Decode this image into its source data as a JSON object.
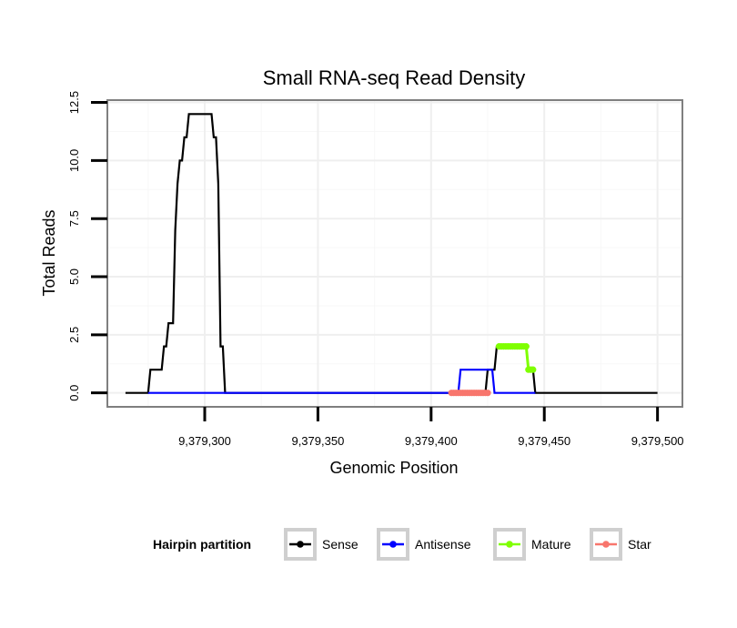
{
  "chart_data": {
    "type": "line",
    "title": "Small RNA-seq Read Density",
    "xlabel": "Genomic Position",
    "ylabel": "Total Reads",
    "xlim": [
      9379257,
      9379511
    ],
    "ylim": [
      -0.6,
      12.6
    ],
    "x_ticks": [
      9379300,
      9379350,
      9379400,
      9379450,
      9379500
    ],
    "x_tick_labels": [
      "9,379,300",
      "9,379,350",
      "9,379,400",
      "9,379,450",
      "9,379,500"
    ],
    "y_ticks": [
      0,
      2.5,
      5,
      7.5,
      10,
      12.5
    ],
    "y_tick_labels": [
      "0.0",
      "2.5",
      "5.0",
      "7.5",
      "10.0",
      "12.5"
    ],
    "grid": true,
    "legend_position": "bottom",
    "legend_title": "Hairpin partition",
    "series": [
      {
        "name": "Sense",
        "color": "#000000",
        "style": "line",
        "points": [
          [
            9379265,
            0
          ],
          [
            9379275,
            0
          ],
          [
            9379276,
            1
          ],
          [
            9379281,
            1
          ],
          [
            9379282,
            2
          ],
          [
            9379283,
            2
          ],
          [
            9379284,
            3
          ],
          [
            9379286,
            3
          ],
          [
            9379287,
            7
          ],
          [
            9379288,
            9
          ],
          [
            9379289,
            10
          ],
          [
            9379290,
            10
          ],
          [
            9379291,
            11
          ],
          [
            9379292,
            11
          ],
          [
            9379293,
            12
          ],
          [
            9379303,
            12
          ],
          [
            9379304,
            11
          ],
          [
            9379305,
            11
          ],
          [
            9379306,
            9
          ],
          [
            9379307,
            2
          ],
          [
            9379308,
            2
          ],
          [
            9379309,
            0
          ],
          [
            9379424,
            0
          ],
          [
            9379425,
            1
          ],
          [
            9379428,
            1
          ],
          [
            9379429,
            2
          ],
          [
            9379442,
            2
          ],
          [
            9379443,
            1
          ],
          [
            9379445,
            1
          ],
          [
            9379446,
            0
          ],
          [
            9379500,
            0
          ]
        ]
      },
      {
        "name": "Antisense",
        "color": "#0000ff",
        "style": "line",
        "points": [
          [
            9379275,
            0
          ],
          [
            9379309,
            0
          ],
          [
            9379410,
            0
          ],
          [
            9379412,
            0
          ],
          [
            9379413,
            1
          ],
          [
            9379427,
            1
          ],
          [
            9379428,
            0
          ],
          [
            9379446,
            0
          ]
        ]
      },
      {
        "name": "Mature",
        "color": "#7fff00",
        "style": "dots",
        "points": [
          [
            9379430,
            2
          ],
          [
            9379431,
            2
          ],
          [
            9379432,
            2
          ],
          [
            9379433,
            2
          ],
          [
            9379434,
            2
          ],
          [
            9379435,
            2
          ],
          [
            9379436,
            2
          ],
          [
            9379437,
            2
          ],
          [
            9379438,
            2
          ],
          [
            9379439,
            2
          ],
          [
            9379440,
            2
          ],
          [
            9379441,
            2
          ],
          [
            9379442,
            2
          ],
          [
            9379443,
            1
          ],
          [
            9379444,
            1
          ],
          [
            9379445,
            1
          ]
        ]
      },
      {
        "name": "Star",
        "color": "#f8766d",
        "style": "dots",
        "points": [
          [
            9379409,
            0
          ],
          [
            9379410,
            0
          ],
          [
            9379411,
            0
          ],
          [
            9379412,
            0
          ],
          [
            9379413,
            0
          ],
          [
            9379414,
            0
          ],
          [
            9379415,
            0
          ],
          [
            9379416,
            0
          ],
          [
            9379417,
            0
          ],
          [
            9379418,
            0
          ],
          [
            9379419,
            0
          ],
          [
            9379420,
            0
          ],
          [
            9379421,
            0
          ],
          [
            9379422,
            0
          ],
          [
            9379423,
            0
          ],
          [
            9379424,
            0
          ],
          [
            9379425,
            0
          ]
        ]
      }
    ]
  }
}
